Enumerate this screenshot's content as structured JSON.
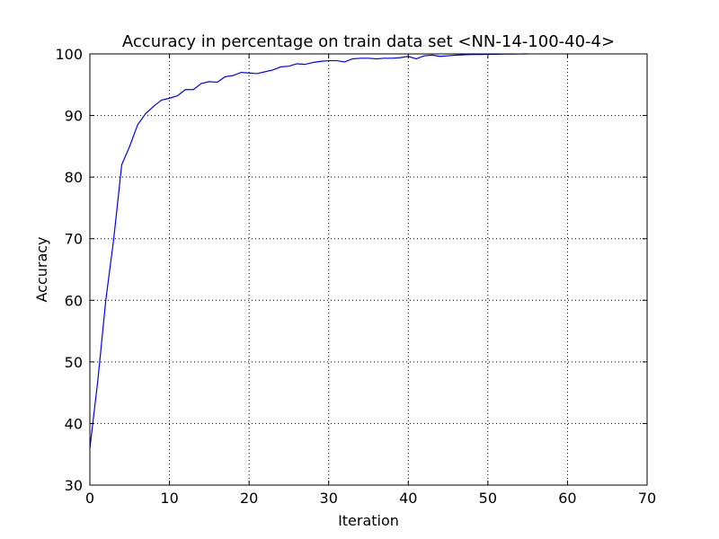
{
  "chart_data": {
    "type": "line",
    "title": "Accuracy in percentage on train data set <NN-14-100-40-4>",
    "xlabel": "Iteration",
    "ylabel": "Accuracy",
    "xlim": [
      0,
      70
    ],
    "ylim": [
      30,
      100
    ],
    "xticks": [
      0,
      10,
      20,
      30,
      40,
      50,
      60,
      70
    ],
    "yticks": [
      30,
      40,
      50,
      60,
      70,
      80,
      90,
      100
    ],
    "grid": true,
    "line_color": "#0000ff",
    "series": [
      {
        "x": [
          0,
          1,
          2,
          3,
          4,
          5,
          6,
          7,
          8,
          9,
          10,
          11,
          12,
          13,
          14,
          15,
          16,
          17,
          18,
          19,
          20,
          21,
          22,
          23,
          24,
          25,
          26,
          27,
          28,
          29,
          30,
          31,
          32,
          33,
          34,
          35,
          36,
          37,
          38,
          39,
          40,
          41,
          42,
          43,
          44,
          45,
          46,
          47,
          48,
          49,
          50,
          51,
          52,
          53,
          54,
          55
        ],
        "values": [
          36.0,
          47.0,
          60.0,
          70.0,
          82.0,
          85.0,
          88.5,
          90.3,
          91.5,
          92.5,
          92.8,
          93.2,
          94.2,
          94.2,
          95.2,
          95.5,
          95.4,
          96.3,
          96.5,
          97.0,
          96.9,
          96.8,
          97.1,
          97.4,
          97.9,
          98.0,
          98.4,
          98.3,
          98.6,
          98.8,
          98.9,
          98.9,
          98.7,
          99.2,
          99.3,
          99.3,
          99.2,
          99.3,
          99.3,
          99.4,
          99.6,
          99.2,
          99.7,
          99.8,
          99.6,
          99.7,
          99.8,
          99.85,
          99.9,
          99.9,
          99.95,
          99.95,
          99.97,
          99.98,
          99.99,
          100.0
        ]
      }
    ]
  }
}
